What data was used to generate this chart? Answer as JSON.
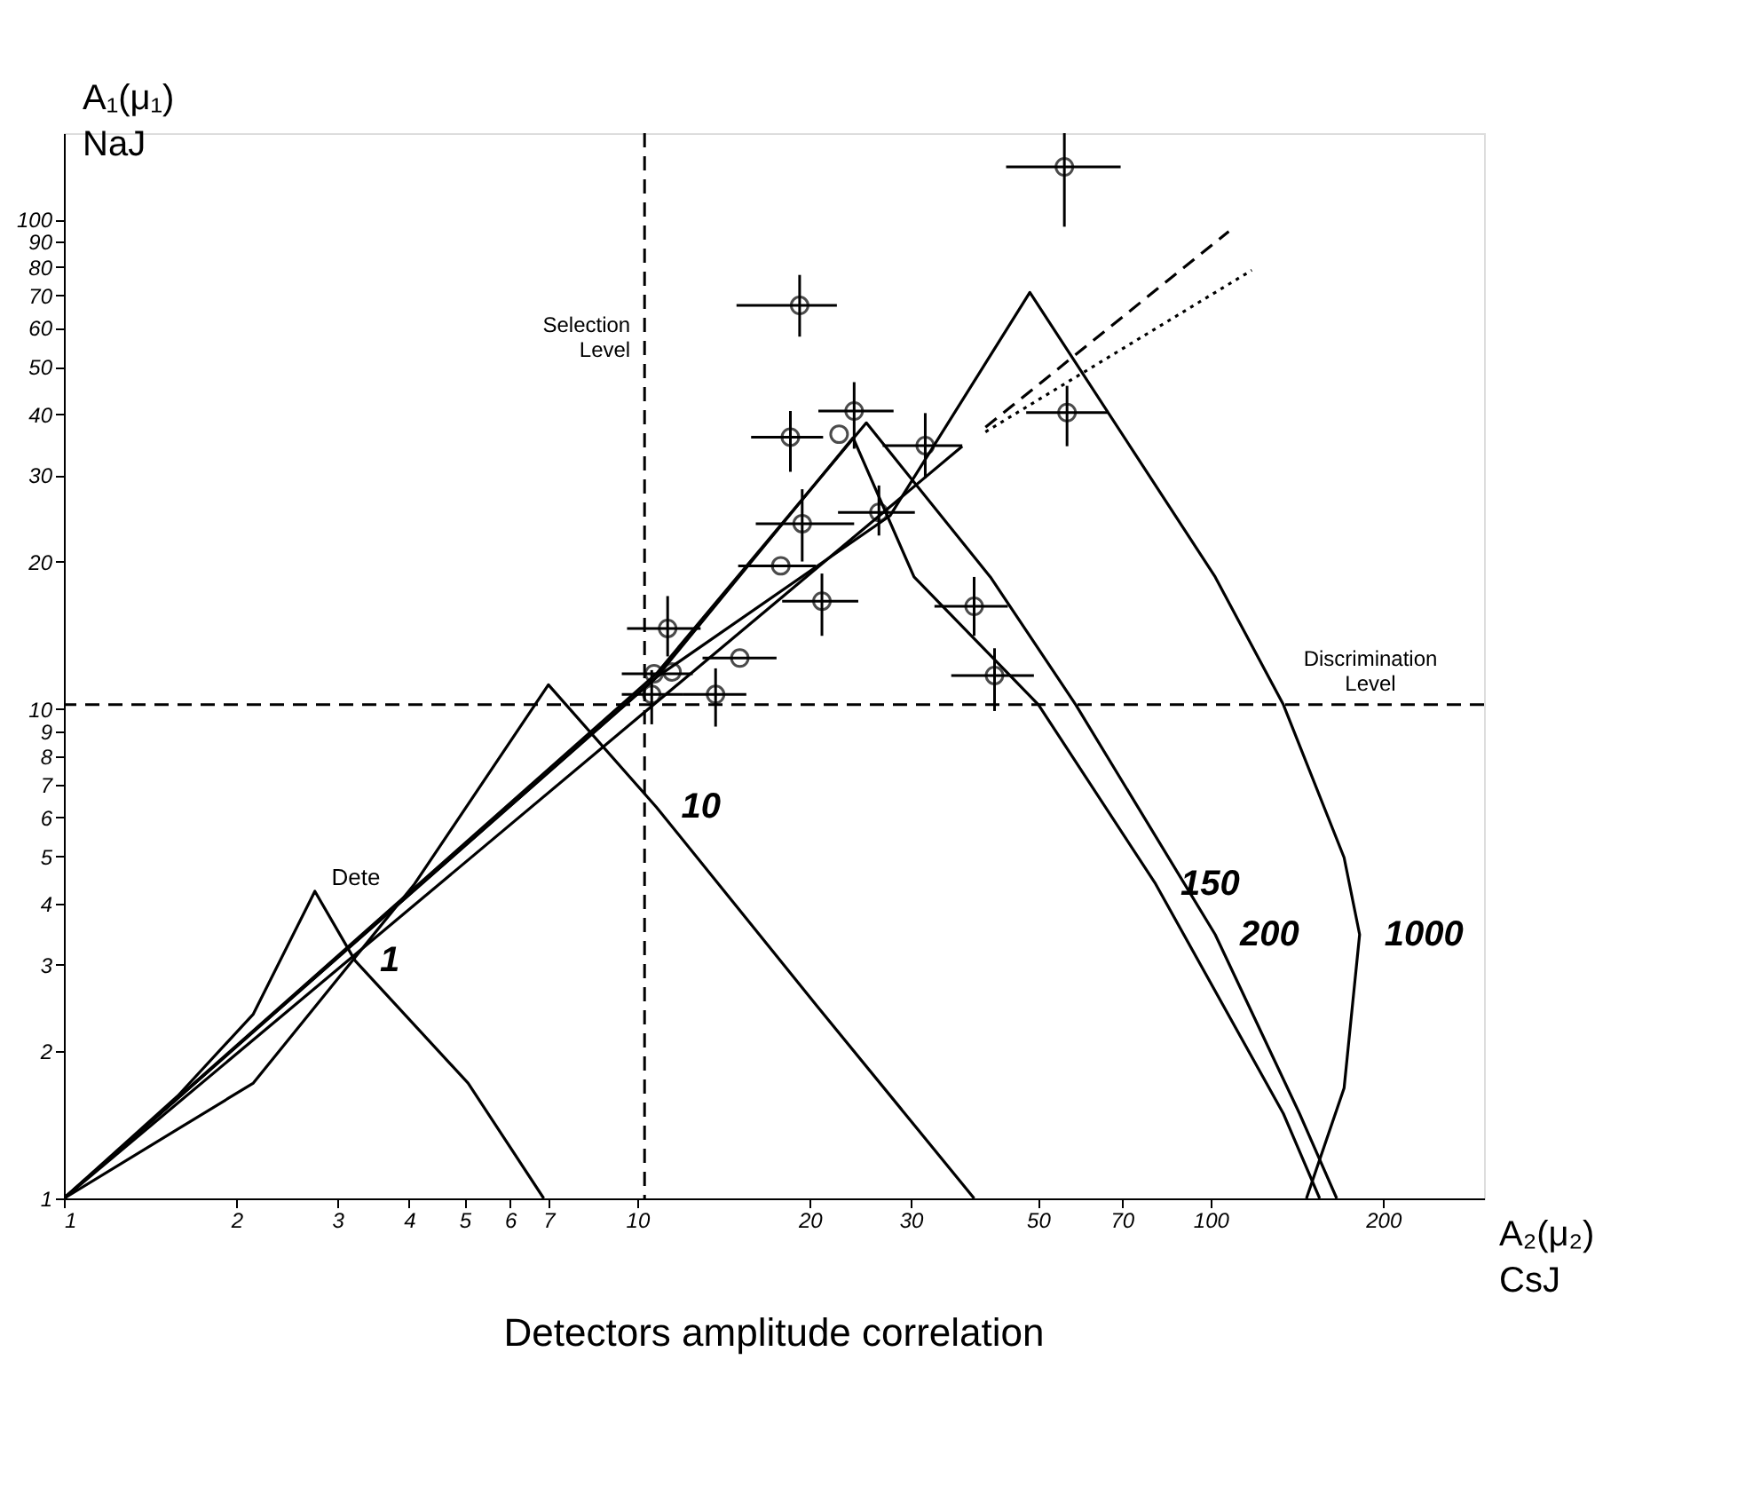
{
  "chart_data": {
    "type": "line",
    "title": "Detectors  amplitude correlation",
    "xlabel": "A₂(μ₂) CsJ",
    "ylabel": "A₁(μ₁) NaJ",
    "log": "xy",
    "grid": false,
    "xlim": [
      1,
      300
    ],
    "ylim": [
      1,
      150
    ],
    "xticks": [
      1,
      2,
      3,
      4,
      5,
      6,
      7,
      10,
      20,
      30,
      50,
      70,
      100,
      200
    ],
    "yticks": [
      1,
      2,
      3,
      4,
      5,
      6,
      7,
      8,
      9,
      10,
      20,
      30,
      40,
      50,
      60,
      70,
      80,
      90,
      100
    ],
    "series": [
      {
        "name": "1",
        "type": "line",
        "color": "#000000",
        "line_style": "solid",
        "x": [
          1,
          1.58,
          2.14,
          2.74,
          3.22,
          5.07,
          6.87
        ],
        "values": [
          1,
          1.62,
          2.38,
          4.24,
          3.06,
          1.72,
          1
        ]
      },
      {
        "name": "10",
        "type": "line",
        "color": "#000000",
        "line_style": "solid",
        "x": [
          1,
          2.14,
          4.09,
          7.0,
          10.8,
          20.6,
          38.7
        ],
        "values": [
          1,
          1.72,
          4.39,
          11.2,
          6.3,
          2.47,
          1
        ]
      },
      {
        "name": "150",
        "type": "line",
        "color": "#000000",
        "line_style": "solid",
        "x": [
          1,
          10.8,
          23.8,
          30.4,
          50.1,
          80.2,
          134,
          155
        ],
        "values": [
          1,
          11.6,
          35.8,
          18.6,
          10.2,
          4.39,
          1.49,
          1
        ]
      },
      {
        "name": "200",
        "type": "line",
        "color": "#000000",
        "line_style": "solid",
        "x": [
          1,
          10.8,
          25.1,
          41.3,
          58.2,
          101.9,
          143,
          166
        ],
        "values": [
          1,
          11.8,
          38.4,
          18.6,
          10.2,
          3.46,
          1.49,
          1
        ]
      },
      {
        "name": "1000",
        "type": "line",
        "color": "#000000",
        "line_style": "solid",
        "x": [
          1,
          10.8,
          27.6,
          48.4,
          101.9,
          134,
          171,
          182,
          171,
          147
        ],
        "values": [
          1,
          11.6,
          24.8,
          70.9,
          18.6,
          10.2,
          4.97,
          3.46,
          1.68,
          1
        ]
      },
      {
        "type": "line",
        "color": "#000000",
        "line_style": "solid",
        "x": [
          1,
          36.9
        ],
        "values": [
          1,
          34.4
        ]
      },
      {
        "color": "#000000",
        "line_style": "dashed",
        "x": [
          40.5,
          107.6
        ],
        "values": [
          37.6,
          94.5
        ]
      },
      {
        "color": "#000000",
        "line_style": "dotted",
        "x": [
          40.5,
          118
        ],
        "values": [
          36.8,
          78.7
        ]
      },
      {
        "type": "scatter",
        "color": "#000000",
        "marker": "circle",
        "x": [
          55.6,
          19.2,
          56.2,
          18.5,
          22.5,
          23.9,
          31.8,
          19.4,
          26.4,
          17.8,
          21.0,
          38.7,
          11.3,
          42.0,
          10.7,
          10.6,
          13.7,
          15.1,
          11.5
        ],
        "values": [
          128,
          66.7,
          40.3,
          35.9,
          36.4,
          40.6,
          34.5,
          23.9,
          25.2,
          19.6,
          16.6,
          16.2,
          14.6,
          11.7,
          11.8,
          10.7,
          10.7,
          12.7,
          11.9
        ],
        "errors": [
          [
            96.6,
            150
          ],
          [
            57.6,
            77.0
          ],
          [
            34.4,
            45.7
          ],
          [
            30.5,
            40.6
          ],
          null,
          [
            34.0,
            46.5
          ],
          [
            29.6,
            40.2
          ],
          [
            20.0,
            28.1
          ],
          [
            22.6,
            28.6
          ],
          null,
          [
            14.1,
            18.9
          ],
          [
            14.1,
            18.6
          ],
          [
            12.8,
            17.0
          ],
          [
            9.9,
            13.3
          ],
          null,
          [
            9.3,
            12.0
          ],
          [
            9.2,
            12.1
          ],
          null,
          null
        ],
        "xerrors": [
          [
            44.0,
            69.7
          ],
          [
            14.9,
            22.3
          ],
          [
            47.7,
            66.2
          ],
          [
            15.8,
            21.1
          ],
          null,
          [
            20.7,
            28.0
          ],
          [
            26.8,
            36.9
          ],
          [
            16.1,
            23.9
          ],
          [
            22.4,
            30.5
          ],
          [
            15.0,
            20.5
          ],
          [
            17.9,
            24.3
          ],
          [
            33.0,
            44.3
          ],
          [
            9.6,
            12.9
          ],
          [
            35.3,
            49.2
          ],
          [
            9.4,
            12.5
          ],
          [
            9.4,
            12.0
          ],
          [
            12.0,
            15.5
          ],
          [
            13.0,
            17.5
          ],
          null
        ]
      }
    ],
    "ref_lines": [
      {
        "axis": "x",
        "value": 10.3,
        "label": "Selection Level",
        "line_style": "dashed",
        "color": "#000000"
      },
      {
        "axis": "y",
        "value": 10.2,
        "label": "Discrimination Level",
        "line_style": "dashed",
        "color": "#000000"
      }
    ],
    "annotations": [
      {
        "text": "Dete",
        "x": 3.72,
        "y": 4.09
      }
    ]
  }
}
